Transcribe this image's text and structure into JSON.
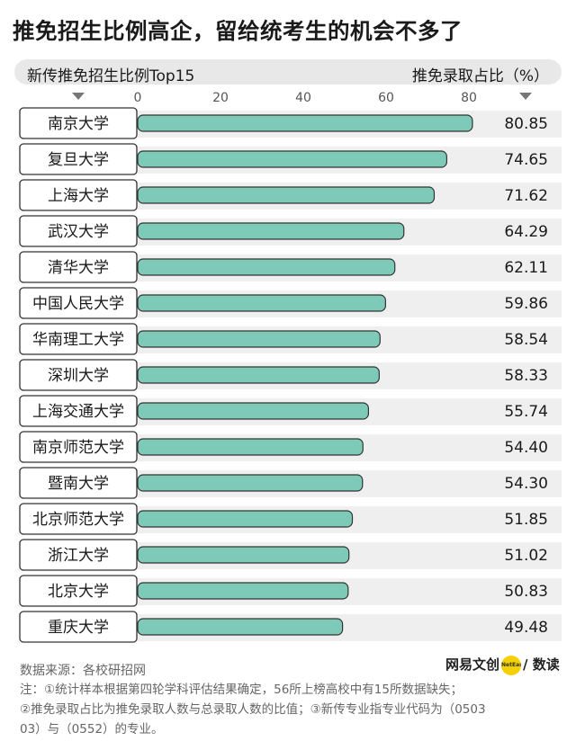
{
  "title": "推免招生比例高企，留给统考生的机会不多了",
  "subtitle_left": "新传推免招生比例Top15",
  "subtitle_right": "推免录取占比（%）",
  "colors": {
    "bar": "#7ecab9",
    "bar_stroke": "#333333",
    "row_band": "#efefef",
    "label_box_border": "#333333"
  },
  "chart_data": {
    "type": "bar",
    "orientation": "horizontal",
    "title": "新传推免招生比例Top15",
    "ylabel": "推免录取占比（%）",
    "xlim": [
      0,
      80
    ],
    "xticks": [
      0,
      20,
      40,
      60,
      80
    ],
    "grid": false,
    "categories": [
      "南京大学",
      "复旦大学",
      "上海大学",
      "武汉大学",
      "清华大学",
      "中国人民大学",
      "华南理工大学",
      "深圳大学",
      "上海交通大学",
      "南京师范大学",
      "暨南大学",
      "北京师范大学",
      "浙江大学",
      "北京大学",
      "重庆大学"
    ],
    "values": [
      80.85,
      74.65,
      71.62,
      64.29,
      62.11,
      59.86,
      58.54,
      58.33,
      55.74,
      54.4,
      54.3,
      51.85,
      51.02,
      50.83,
      49.48
    ],
    "value_labels": [
      "80.85",
      "74.65",
      "71.62",
      "64.29",
      "62.11",
      "59.86",
      "58.54",
      "58.33",
      "55.74",
      "54.40",
      "54.30",
      "51.85",
      "51.02",
      "50.83",
      "49.48"
    ]
  },
  "source": "数据来源：各校研招网",
  "brand": {
    "name_left": "网易文创",
    "dot_text": "NetEase",
    "name_right": "/ 数读"
  },
  "notes": [
    "注：①统计样本根据第四轮学科评估结果确定，56所上榜高校中有15所数据缺失；",
    "②推免录取占比为推免录取人数与总录取人数的比值；③新传专业指专业代码为（0503",
    "03）与（0552）的专业。"
  ]
}
